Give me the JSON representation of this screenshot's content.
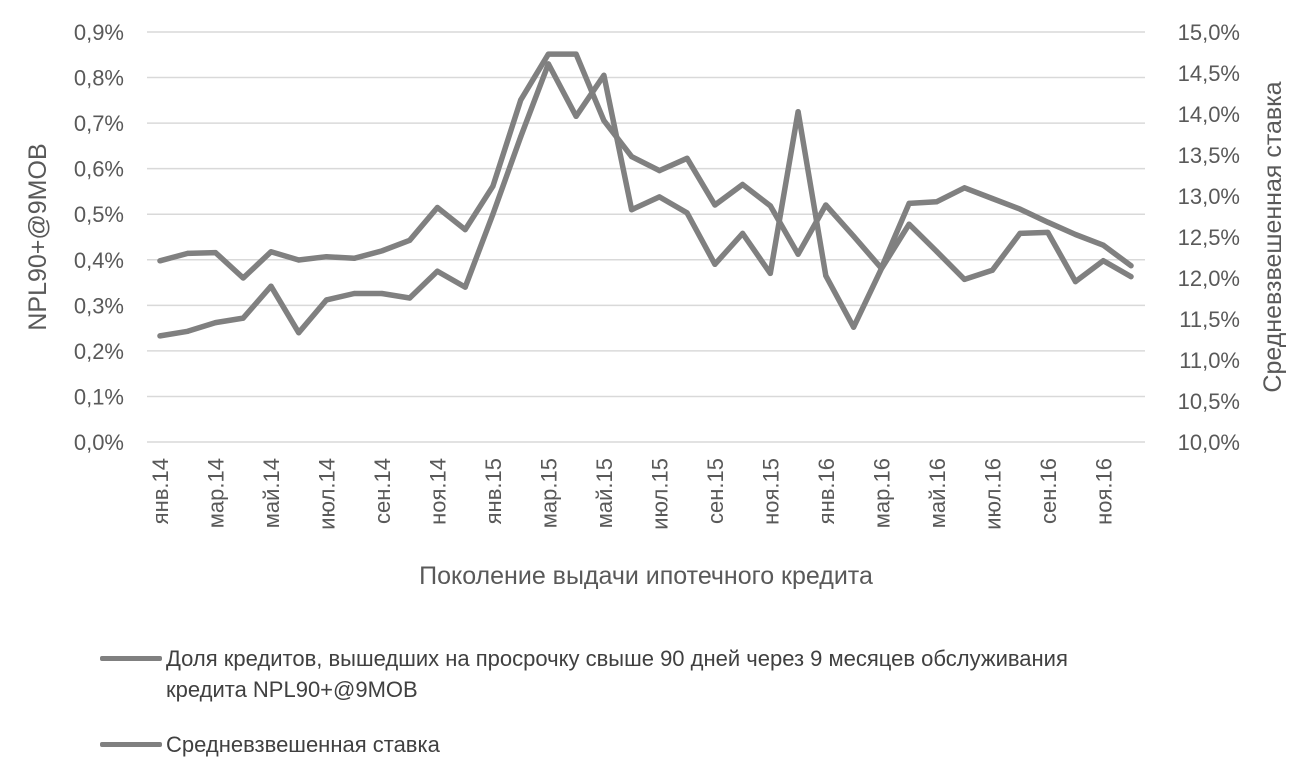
{
  "chart_data": {
    "type": "line",
    "xlabel": "Поколение выдачи ипотечного кредита",
    "ylabel_left": "NPL90+@9MOB",
    "ylabel_right": "Средневзвешенная ставка",
    "y_left_range": [
      0,
      0.9
    ],
    "y_left_ticks": [
      "0,0%",
      "0,1%",
      "0,2%",
      "0,3%",
      "0,4%",
      "0,5%",
      "0,6%",
      "0,7%",
      "0,8%",
      "0,9%"
    ],
    "y_right_range": [
      10.0,
      15.0
    ],
    "y_right_ticks": [
      "10,0%",
      "10,5%",
      "11,0%",
      "11,5%",
      "12,0%",
      "12,5%",
      "13,0%",
      "13,5%",
      "14,0%",
      "14,5%",
      "15,0%"
    ],
    "x_tick_labels": [
      "янв.14",
      "мар.14",
      "май.14",
      "июл.14",
      "сен.14",
      "ноя.14",
      "янв.15",
      "мар.15",
      "май.15",
      "июл.15",
      "сен.15",
      "ноя.15",
      "янв.16",
      "мар.16",
      "май.16",
      "июл.16",
      "сен.16",
      "ноя.16"
    ],
    "x": [
      "янв.14",
      "фев.14",
      "мар.14",
      "апр.14",
      "май.14",
      "июн.14",
      "июл.14",
      "авг.14",
      "сен.14",
      "окт.14",
      "ноя.14",
      "дек.14",
      "янв.15",
      "фев.15",
      "мар.15",
      "апр.15",
      "май.15",
      "июн.15",
      "июл.15",
      "авг.15",
      "сен.15",
      "окт.15",
      "ноя.15",
      "дек.15",
      "янв.16",
      "фев.16",
      "мар.16",
      "апр.16",
      "май.16",
      "июн.16",
      "июл.16",
      "авг.16",
      "сен.16",
      "окт.16",
      "ноя.16",
      "дек.16"
    ],
    "grid": true,
    "legend_position": "bottom",
    "series": [
      {
        "name": "Доля кредитов, вышедших на просрочку свыше 90 дней через 9 месяцев обслуживания кредита NPL90+@9MOB",
        "axis": "left",
        "color": "#808080",
        "values": [
          0.233,
          0.243,
          0.262,
          0.272,
          0.342,
          0.24,
          0.312,
          0.326,
          0.326,
          0.316,
          0.375,
          0.34,
          0.5,
          0.67,
          0.83,
          0.715,
          0.805,
          0.51,
          0.538,
          0.503,
          0.39,
          0.458,
          0.37,
          0.725,
          0.365,
          0.252,
          0.38,
          0.478,
          0.418,
          0.357,
          0.377,
          0.458,
          0.46,
          0.352,
          0.398,
          0.363
        ]
      },
      {
        "name": "Средневзвешенная ставка",
        "axis": "right",
        "color": "#808080",
        "values": [
          12.21,
          12.3,
          12.31,
          12.0,
          12.32,
          12.22,
          12.26,
          12.24,
          12.33,
          12.46,
          12.86,
          12.59,
          13.12,
          14.17,
          14.73,
          14.73,
          13.92,
          13.48,
          13.31,
          13.46,
          12.89,
          13.14,
          12.88,
          12.29,
          12.89,
          12.51,
          12.12,
          12.91,
          12.93,
          13.1,
          12.97,
          12.84,
          12.68,
          12.53,
          12.4,
          12.15
        ]
      }
    ]
  }
}
